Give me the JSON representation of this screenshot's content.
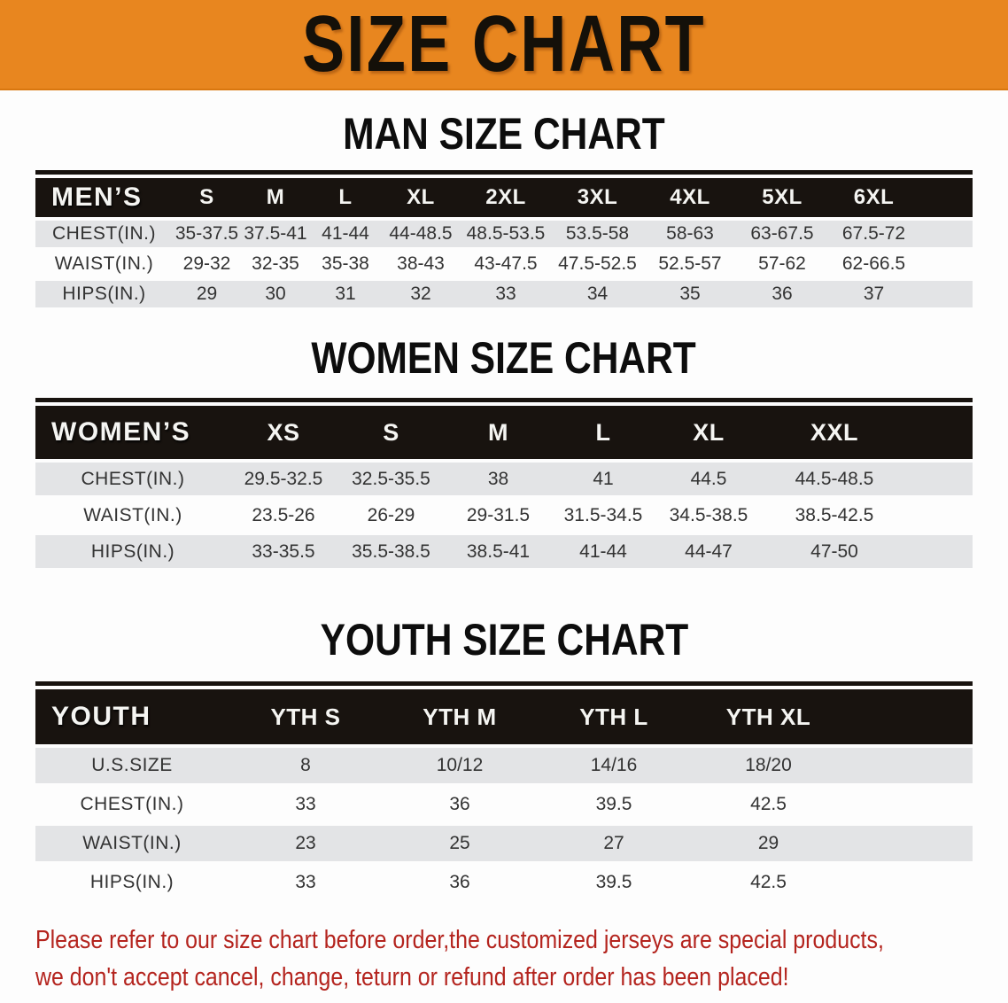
{
  "banner": {
    "title": "SIZE CHART"
  },
  "colors": {
    "banner_bg": "#e8861f",
    "header_bg": "#18130f",
    "row_gray": "#e3e4e6",
    "page_bg": "#fdfdfd",
    "title_color": "#0d0d0d",
    "note_red": "#b4241e"
  },
  "sections": {
    "men": {
      "title": "MAN SIZE CHART",
      "table": {
        "label": "MEN’S",
        "sizes": [
          "S",
          "M",
          "L",
          "XL",
          "2XL",
          "3XL",
          "4XL",
          "5XL",
          "6XL"
        ],
        "rows": [
          {
            "label": "CHEST(IN.)",
            "values": [
              "35-37.5",
              "37.5-41",
              "41-44",
              "44-48.5",
              "48.5-53.5",
              "53.5-58",
              "58-63",
              "63-67.5",
              "67.5-72"
            ]
          },
          {
            "label": "WAIST(IN.)",
            "values": [
              "29-32",
              "32-35",
              "35-38",
              "38-43",
              "43-47.5",
              "47.5-52.5",
              "52.5-57",
              "57-62",
              "62-66.5"
            ]
          },
          {
            "label": "HIPS(IN.)",
            "values": [
              "29",
              "30",
              "31",
              "32",
              "33",
              "34",
              "35",
              "36",
              "37"
            ]
          }
        ]
      }
    },
    "women": {
      "title": "WOMEN SIZE CHART",
      "table": {
        "label": "WOMEN’S",
        "sizes": [
          "XS",
          "S",
          "M",
          "L",
          "XL",
          "XXL"
        ],
        "rows": [
          {
            "label": "CHEST(IN.)",
            "values": [
              "29.5-32.5",
              "32.5-35.5",
              "38",
              "41",
              "44.5",
              "44.5-48.5"
            ]
          },
          {
            "label": "WAIST(IN.)",
            "values": [
              "23.5-26",
              "26-29",
              "29-31.5",
              "31.5-34.5",
              "34.5-38.5",
              "38.5-42.5"
            ]
          },
          {
            "label": "HIPS(IN.)",
            "values": [
              "33-35.5",
              "35.5-38.5",
              "38.5-41",
              "41-44",
              "44-47",
              "47-50"
            ]
          }
        ]
      }
    },
    "youth": {
      "title": "YOUTH SIZE CHART",
      "table": {
        "label": "YOUTH",
        "sizes": [
          "YTH S",
          "YTH M",
          "YTH L",
          "YTH XL"
        ],
        "rows": [
          {
            "label": "U.S.SIZE",
            "values": [
              "8",
              "10/12",
              "14/16",
              "18/20"
            ]
          },
          {
            "label": "CHEST(IN.)",
            "values": [
              "33",
              "36",
              "39.5",
              "42.5"
            ]
          },
          {
            "label": "WAIST(IN.)",
            "values": [
              "23",
              "25",
              "27",
              "29"
            ]
          },
          {
            "label": "HIPS(IN.)",
            "values": [
              "33",
              "36",
              "39.5",
              "42.5"
            ]
          }
        ]
      }
    }
  },
  "note": {
    "line1": "Please refer to our size chart before order,the customized jerseys are special products,",
    "line2": "we don't accept cancel, change, teturn or refund after order has been placed!"
  }
}
